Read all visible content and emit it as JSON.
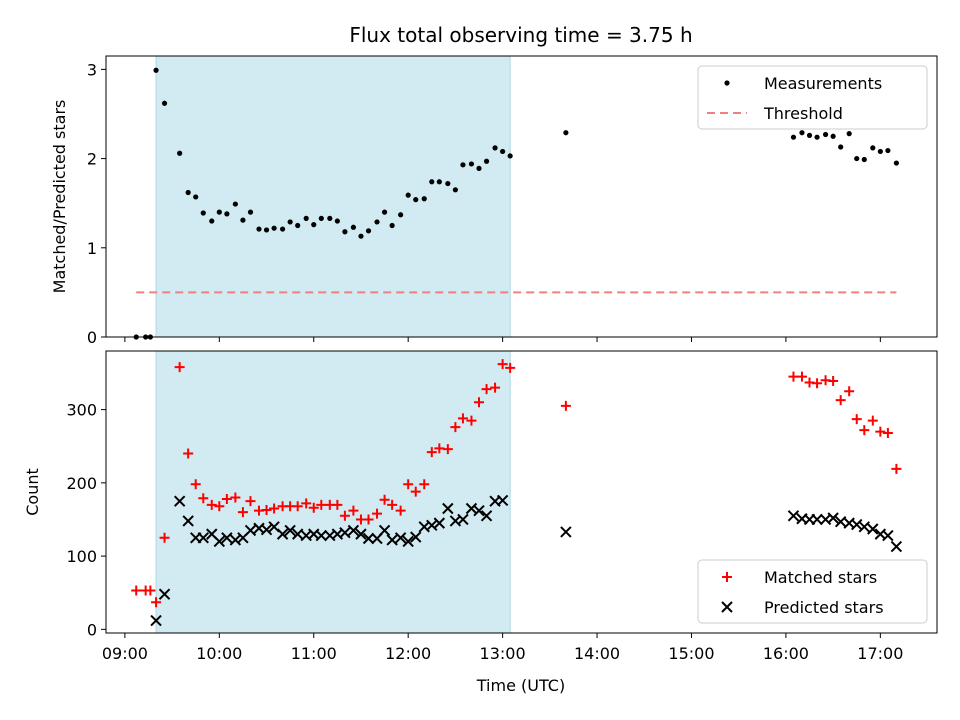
{
  "figure": {
    "title": "Flux total observing time = 3.75 h",
    "xlabel": "Time (UTC)",
    "background": "#ffffff"
  },
  "chart_data": [
    {
      "type": "scatter",
      "ylabel": "Matched/Predicted stars",
      "xlim": [
        8.8,
        17.6
      ],
      "ylim": [
        0,
        3.15
      ],
      "yticks": [
        0,
        1,
        2,
        3
      ],
      "xticks": [
        9,
        10,
        11,
        12,
        13,
        14,
        15,
        16,
        17
      ],
      "legend_position": "upper right",
      "shaded_span": {
        "x": [
          9.33,
          13.08
        ],
        "color": "#add8e6"
      },
      "series": [
        {
          "name": "Measurements",
          "marker": "dot",
          "color": "#000000",
          "x": [
            9.12,
            9.22,
            9.27,
            9.33,
            9.42,
            9.58,
            9.67,
            9.75,
            9.83,
            9.92,
            10.0,
            10.08,
            10.17,
            10.25,
            10.33,
            10.42,
            10.5,
            10.58,
            10.67,
            10.75,
            10.83,
            10.92,
            11.0,
            11.08,
            11.17,
            11.25,
            11.33,
            11.42,
            11.5,
            11.58,
            11.67,
            11.75,
            11.83,
            11.92,
            12.0,
            12.08,
            12.17,
            12.25,
            12.33,
            12.42,
            12.5,
            12.58,
            12.67,
            12.75,
            12.83,
            12.92,
            13.0,
            13.08,
            13.67,
            16.08,
            16.17,
            16.25,
            16.33,
            16.42,
            16.5,
            16.58,
            16.67,
            16.75,
            16.83,
            16.92,
            17.0,
            17.08,
            17.17
          ],
          "y": [
            0,
            0,
            0,
            2.99,
            2.62,
            2.06,
            1.62,
            1.57,
            1.39,
            1.3,
            1.4,
            1.38,
            1.49,
            1.31,
            1.4,
            1.21,
            1.2,
            1.22,
            1.21,
            1.29,
            1.25,
            1.33,
            1.26,
            1.33,
            1.33,
            1.3,
            1.18,
            1.23,
            1.13,
            1.19,
            1.29,
            1.4,
            1.25,
            1.37,
            1.59,
            1.54,
            1.55,
            1.74,
            1.74,
            1.72,
            1.65,
            1.93,
            1.94,
            1.89,
            1.97,
            2.12,
            2.08,
            2.03,
            2.29,
            2.24,
            2.29,
            2.26,
            2.24,
            2.27,
            2.25,
            2.13,
            2.28,
            2.0,
            1.99,
            2.12,
            2.08,
            2.09,
            1.95
          ]
        },
        {
          "name": "Threshold",
          "marker": "dashed-line",
          "color": "#f08080",
          "x": [
            9.12,
            17.17
          ],
          "y": [
            0.5,
            0.5
          ]
        }
      ]
    },
    {
      "type": "scatter",
      "ylabel": "Count",
      "xlim": [
        8.8,
        17.6
      ],
      "ylim": [
        -5,
        380
      ],
      "yticks": [
        0,
        100,
        200,
        300
      ],
      "xticks": [
        9,
        10,
        11,
        12,
        13,
        14,
        15,
        16,
        17
      ],
      "xticklabels": [
        "09:00",
        "10:00",
        "11:00",
        "12:00",
        "13:00",
        "14:00",
        "15:00",
        "16:00",
        "17:00"
      ],
      "legend_position": "lower right",
      "shaded_span": {
        "x": [
          9.33,
          13.08
        ],
        "color": "#add8e6"
      },
      "series": [
        {
          "name": "Matched stars",
          "marker": "plus",
          "color": "#ff0000",
          "x": [
            9.12,
            9.22,
            9.27,
            9.33,
            9.42,
            9.58,
            9.67,
            9.75,
            9.83,
            9.92,
            10.0,
            10.08,
            10.17,
            10.25,
            10.33,
            10.42,
            10.5,
            10.58,
            10.67,
            10.75,
            10.83,
            10.92,
            11.0,
            11.08,
            11.17,
            11.25,
            11.33,
            11.42,
            11.5,
            11.58,
            11.67,
            11.75,
            11.83,
            11.92,
            12.0,
            12.08,
            12.17,
            12.25,
            12.33,
            12.42,
            12.5,
            12.58,
            12.67,
            12.75,
            12.83,
            12.92,
            13.0,
            13.08,
            13.67,
            16.08,
            16.17,
            16.25,
            16.33,
            16.42,
            16.5,
            16.58,
            16.67,
            16.75,
            16.83,
            16.92,
            17.0,
            17.08,
            17.17
          ],
          "y": [
            53,
            53,
            53,
            37,
            125,
            358,
            240,
            198,
            179,
            170,
            168,
            178,
            180,
            160,
            175,
            162,
            163,
            165,
            168,
            168,
            168,
            172,
            166,
            170,
            170,
            170,
            155,
            162,
            150,
            150,
            158,
            177,
            170,
            162,
            198,
            188,
            198,
            242,
            247,
            246,
            276,
            288,
            285,
            310,
            328,
            330,
            362,
            357,
            305,
            345,
            345,
            337,
            336,
            340,
            339,
            313,
            325,
            287,
            272,
            285,
            270,
            268,
            219
          ]
        },
        {
          "name": "Predicted stars",
          "marker": "x",
          "color": "#000000",
          "x": [
            9.12,
            9.22,
            9.27,
            9.33,
            9.42,
            9.58,
            9.67,
            9.75,
            9.83,
            9.92,
            10.0,
            10.08,
            10.17,
            10.25,
            10.33,
            10.42,
            10.5,
            10.58,
            10.67,
            10.75,
            10.83,
            10.92,
            11.0,
            11.08,
            11.17,
            11.25,
            11.33,
            11.42,
            11.5,
            11.58,
            11.67,
            11.75,
            11.83,
            11.92,
            12.0,
            12.08,
            12.17,
            12.25,
            12.33,
            12.42,
            12.5,
            12.58,
            12.67,
            12.75,
            12.83,
            12.92,
            13.0,
            13.08,
            13.67,
            16.08,
            16.17,
            16.25,
            16.33,
            16.42,
            16.5,
            16.58,
            16.67,
            16.75,
            16.83,
            16.92,
            17.0,
            17.08,
            17.17
          ],
          "y": [
            null,
            null,
            null,
            12,
            48,
            175,
            148,
            125,
            125,
            130,
            120,
            125,
            122,
            125,
            135,
            138,
            136,
            140,
            130,
            135,
            130,
            128,
            130,
            128,
            128,
            130,
            132,
            135,
            130,
            124,
            124,
            135,
            122,
            125,
            120,
            126,
            140,
            142,
            145,
            165,
            148,
            150,
            165,
            162,
            155,
            175,
            176,
            null,
            133,
            155,
            151,
            150,
            150,
            150,
            152,
            147,
            145,
            143,
            140,
            137,
            130,
            128,
            113
          ]
        }
      ]
    }
  ]
}
